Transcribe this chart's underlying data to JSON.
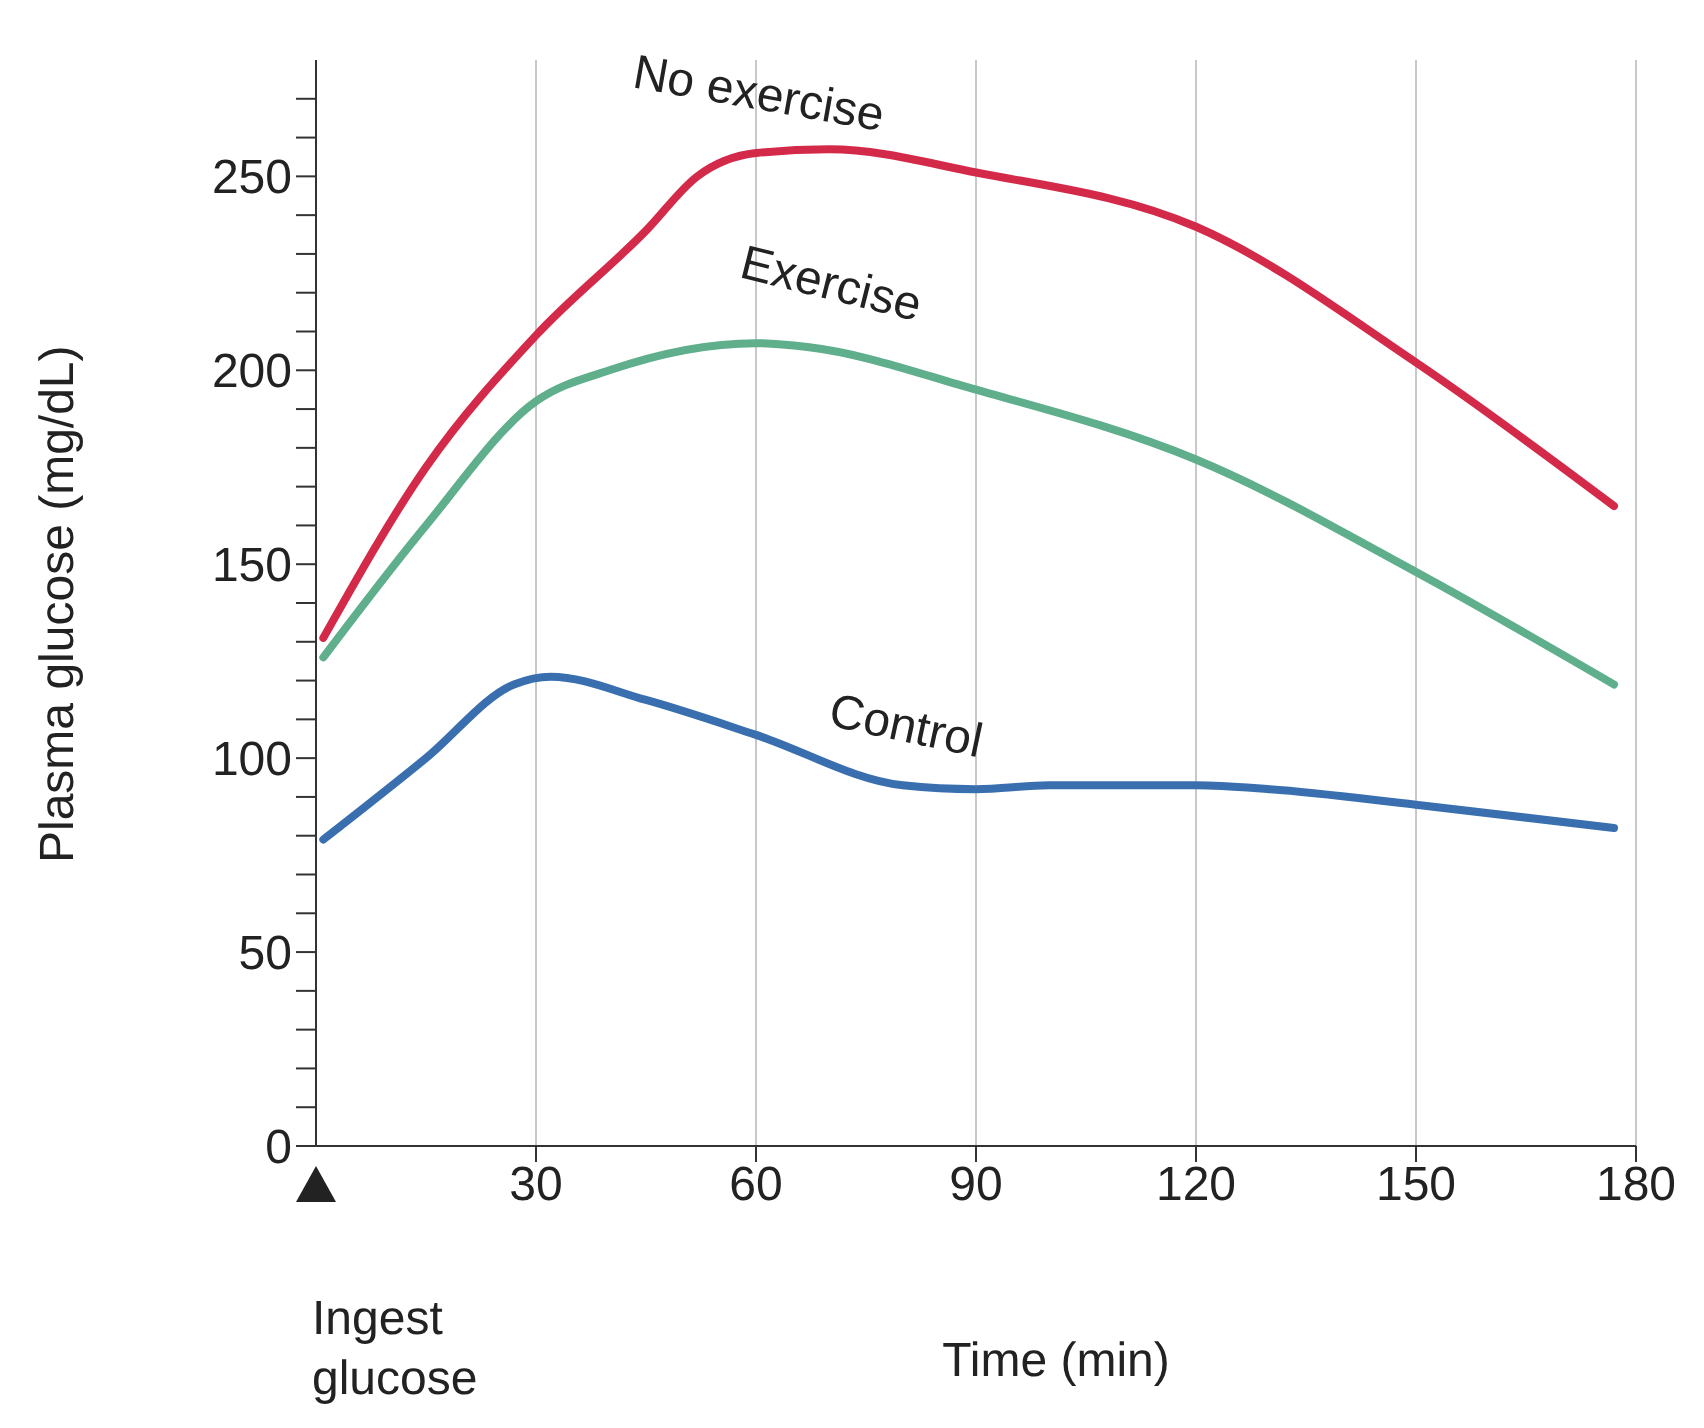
{
  "chart_data": {
    "type": "line",
    "xlabel": "Time (min)",
    "ylabel": "Plasma glucose (mg/dL)",
    "xlim": [
      0,
      180
    ],
    "xticks": [
      30,
      60,
      90,
      120,
      150,
      180
    ],
    "ylim": [
      0,
      280
    ],
    "yticks": [
      0,
      {
        "value": 10,
        "label": null
      },
      {
        "value": 20,
        "label": null
      },
      {
        "value": 30,
        "label": null
      },
      {
        "value": 40,
        "label": null
      },
      50,
      {
        "value": 60,
        "label": null
      },
      {
        "value": 70,
        "label": null
      },
      {
        "value": 80,
        "label": null
      },
      {
        "value": 90,
        "label": null
      },
      100,
      {
        "value": 110,
        "label": null
      },
      {
        "value": 120,
        "label": null
      },
      {
        "value": 130,
        "label": null
      },
      {
        "value": 140,
        "label": null
      },
      150,
      {
        "value": 160,
        "label": null
      },
      {
        "value": 170,
        "label": null
      },
      {
        "value": 180,
        "label": null
      },
      {
        "value": 190,
        "label": null
      },
      200,
      {
        "value": 210,
        "label": null
      },
      {
        "value": 220,
        "label": null
      },
      {
        "value": 230,
        "label": null
      },
      {
        "value": 240,
        "label": null
      },
      250,
      {
        "value": 260,
        "label": null
      },
      {
        "value": 270,
        "label": null
      }
    ],
    "grid": "x",
    "marker": "none",
    "line_style": "solid",
    "annotations": [
      "Ingest glucose"
    ],
    "series": [
      {
        "name": "No exercise",
        "color": "#d42a4a",
        "x": [
          1,
          15,
          30,
          45,
          52,
          60,
          70,
          90,
          120,
          150,
          177
        ],
        "values": [
          131,
          175,
          209,
          236,
          250,
          256,
          257,
          251,
          237,
          202,
          165
        ]
      },
      {
        "name": "Exercise",
        "color": "#5fae8c",
        "x": [
          1,
          15,
          30,
          40,
          60,
          67,
          90,
          120,
          150,
          177
        ],
        "values": [
          126,
          160,
          192,
          200,
          207,
          206,
          195,
          177,
          148,
          119
        ]
      },
      {
        "name": "Control",
        "color": "#3a6faf",
        "x": [
          1,
          15,
          27,
          32,
          45,
          60,
          80,
          90,
          100,
          120,
          130,
          150,
          177
        ],
        "values": [
          79,
          100,
          119,
          121,
          115,
          106,
          93,
          92,
          93,
          93,
          92,
          88,
          82
        ]
      }
    ]
  }
}
